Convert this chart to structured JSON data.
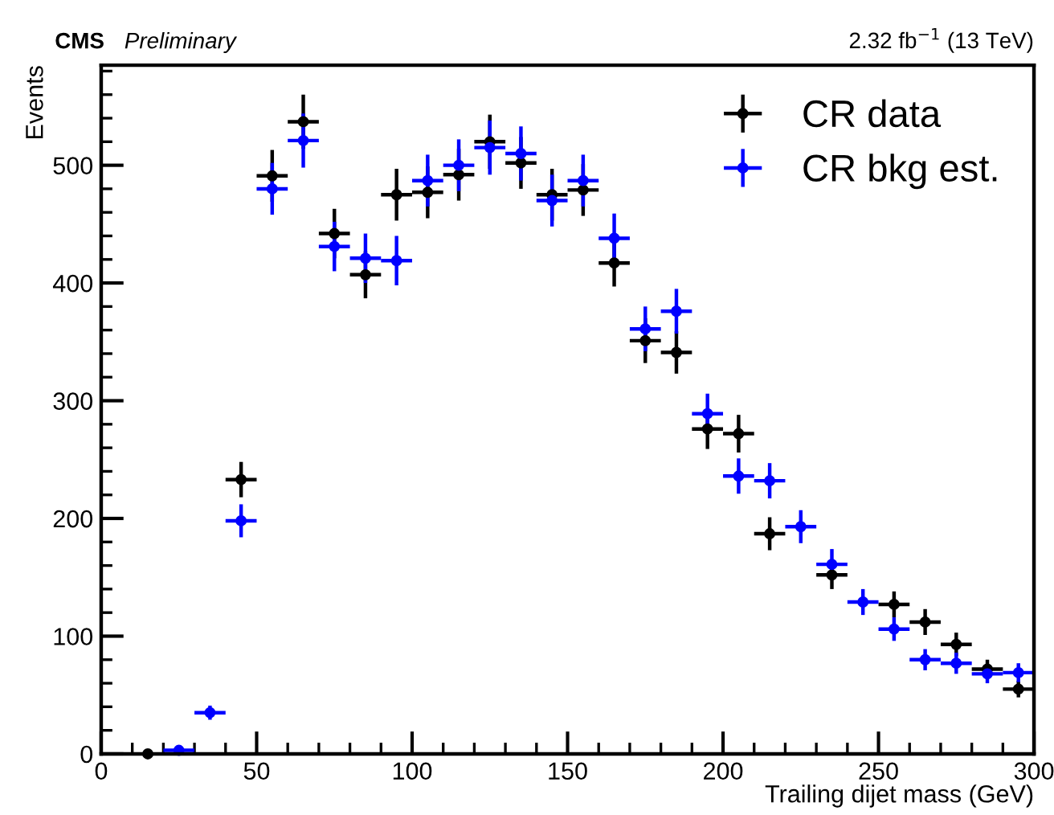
{
  "chart_data": {
    "type": "scatter",
    "xlabel": "Trailing dijet mass (GeV)",
    "ylabel": "Events",
    "annotations": [
      "CMS",
      "Preliminary",
      "2.32 fb$^{−1}$ (13 TeV)"
    ],
    "x": [
      15,
      25,
      35,
      45,
      55,
      65,
      75,
      85,
      95,
      105,
      115,
      125,
      135,
      145,
      155,
      165,
      175,
      185,
      195,
      205,
      215,
      225,
      235,
      245,
      255,
      265,
      275,
      285,
      295
    ],
    "series": [
      {
        "name": "CR data",
        "color": "#000000",
        "values": [
          0,
          null,
          null,
          233,
          491,
          537,
          442,
          407,
          475,
          477,
          492,
          520,
          502,
          475,
          479,
          417,
          351,
          341,
          276,
          272,
          187,
          null,
          152,
          null,
          127,
          112,
          93,
          72,
          55
        ],
        "errors": [
          null,
          null,
          null,
          15,
          22,
          23,
          21,
          20,
          22,
          22,
          22,
          23,
          22,
          22,
          22,
          20,
          19,
          18,
          17,
          16,
          14,
          null,
          12,
          null,
          11,
          11,
          10,
          8,
          7
        ],
        "xerrors": [
          null,
          null,
          null,
          5,
          5,
          5,
          5,
          5,
          5,
          5,
          5,
          5,
          5,
          5,
          5,
          5,
          5,
          5,
          5,
          5,
          5,
          null,
          5,
          null,
          5,
          5,
          5,
          5,
          5
        ]
      },
      {
        "name": "CR bkg est.",
        "color": "#0000ff",
        "values": [
          null,
          3,
          35,
          198,
          480,
          521,
          431,
          421,
          419,
          487,
          500,
          515,
          510,
          470,
          487,
          438,
          361,
          376,
          289,
          236,
          232,
          193,
          161,
          129,
          106,
          80,
          77,
          68,
          69
        ],
        "errors": [
          null,
          2,
          6,
          14,
          22,
          23,
          21,
          21,
          21,
          22,
          22,
          23,
          23,
          22,
          22,
          21,
          19,
          19,
          17,
          15,
          15,
          14,
          13,
          11,
          10,
          9,
          9,
          8,
          8
        ],
        "xerrors": [
          null,
          5,
          5,
          5,
          5,
          5,
          5,
          5,
          5,
          5,
          5,
          5,
          5,
          5,
          5,
          5,
          5,
          5,
          5,
          5,
          5,
          5,
          5,
          5,
          5,
          5,
          5,
          5,
          5
        ]
      }
    ],
    "xlim": [
      0,
      300
    ],
    "xticks": [
      0,
      50,
      100,
      150,
      200,
      250,
      300
    ],
    "ylim": [
      0,
      585
    ],
    "yticks": [
      0,
      100,
      200,
      300,
      400,
      500
    ],
    "marker": "circle",
    "legend": "top right",
    "grid": false
  }
}
